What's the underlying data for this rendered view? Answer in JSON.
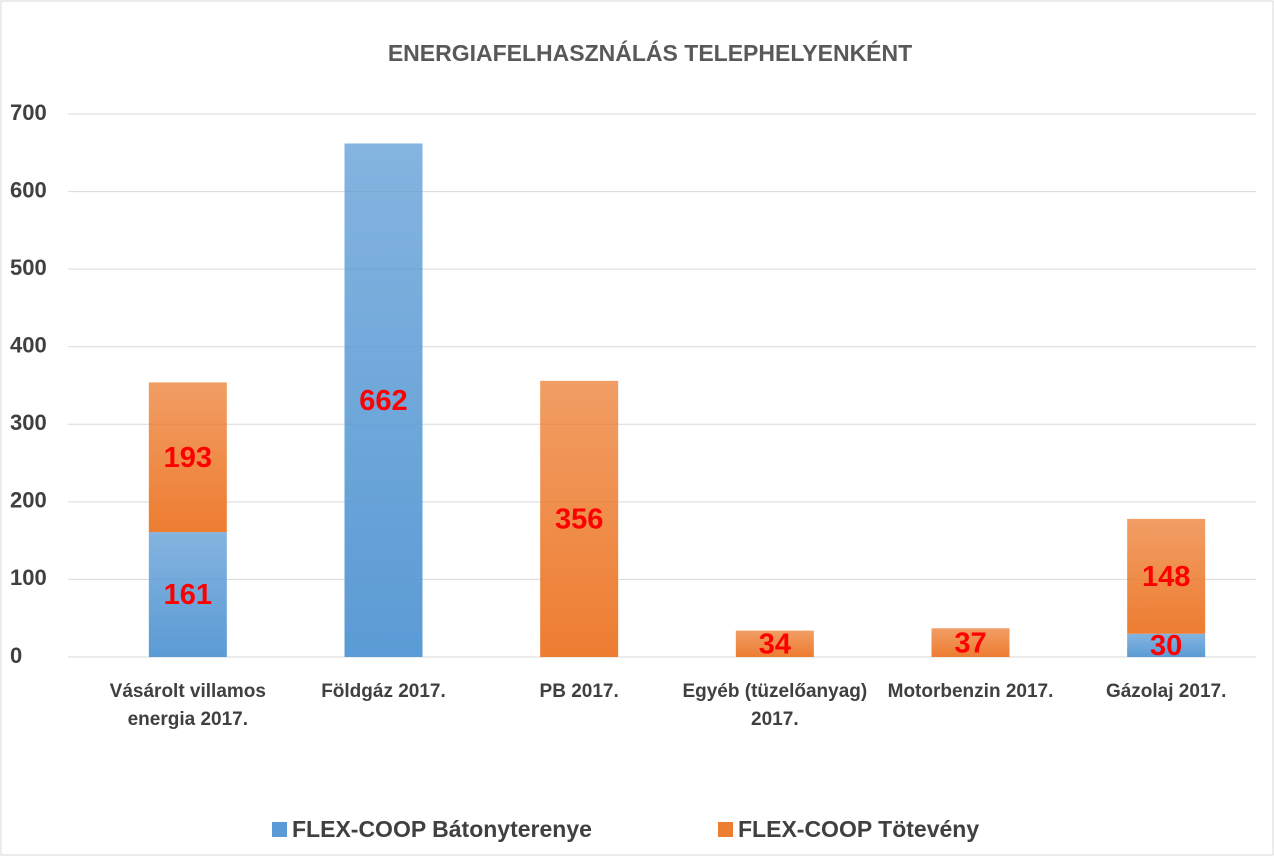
{
  "chart_data": {
    "type": "bar",
    "stacked": true,
    "title": "ENERGIAFELHASZNÁLÁS TELEPHELYENKÉNT",
    "categories": [
      "Vásárolt villamos energia 2017.",
      "Földgáz 2017.",
      "PB 2017.",
      "Egyéb (tüzelőanyag) 2017.",
      "Motorbenzin 2017.",
      "Gázolaj 2017."
    ],
    "series": [
      {
        "name": "FLEX-COOP Bátonyterenye",
        "color": "#5b9bd5",
        "values": [
          161,
          662,
          null,
          null,
          null,
          30
        ]
      },
      {
        "name": "FLEX-COOP Tötevény",
        "color": "#ed7d31",
        "values": [
          193,
          null,
          356,
          34,
          37,
          148
        ]
      }
    ],
    "label_color": "#ff0000",
    "ylim": [
      0,
      700
    ],
    "yticks": [
      0,
      100,
      200,
      300,
      400,
      500,
      600,
      700
    ],
    "grid": true,
    "legend": "bottom"
  }
}
